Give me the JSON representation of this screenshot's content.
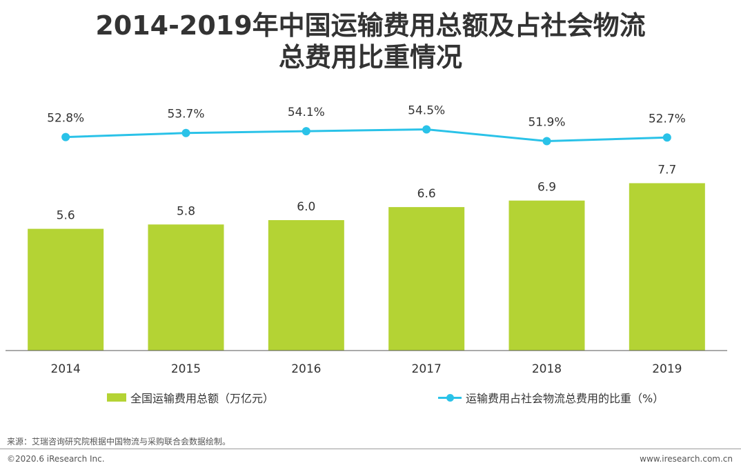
{
  "title_line1": "2014-2019年中国运输费用总额及占社会物流",
  "title_line2": "总费用比重情况",
  "chart_data": {
    "type": "bar",
    "title": "2014-2019年中国运输费用总额及占社会物流总费用比重情况",
    "categories": [
      "2014",
      "2015",
      "2016",
      "2017",
      "2018",
      "2019"
    ],
    "series": [
      {
        "name": "全国运输费用总额（万亿元）",
        "type": "bar",
        "color": "#b4d334",
        "values": [
          5.6,
          5.8,
          6.0,
          6.6,
          6.9,
          7.7
        ],
        "labels": [
          "5.6",
          "5.8",
          "6.0",
          "6.6",
          "6.9",
          "7.7"
        ]
      },
      {
        "name": "运输费用占社会物流总费用的比重（%）",
        "type": "line",
        "color": "#2ac2e8",
        "values": [
          52.8,
          53.7,
          54.1,
          54.5,
          51.9,
          52.7
        ],
        "labels": [
          "52.8%",
          "53.7%",
          "54.1%",
          "54.5%",
          "51.9%",
          "52.7%"
        ]
      }
    ],
    "bar_ylim": [
      0,
      10
    ],
    "line_ylim": [
      0,
      60
    ],
    "legend_position": "bottom"
  },
  "source": "来源：艾瑞咨询研究院根据中国物流与采购联合会数据绘制。",
  "copyright": "©2020.6 iResearch Inc.",
  "website": "www.iresearch.com.cn"
}
